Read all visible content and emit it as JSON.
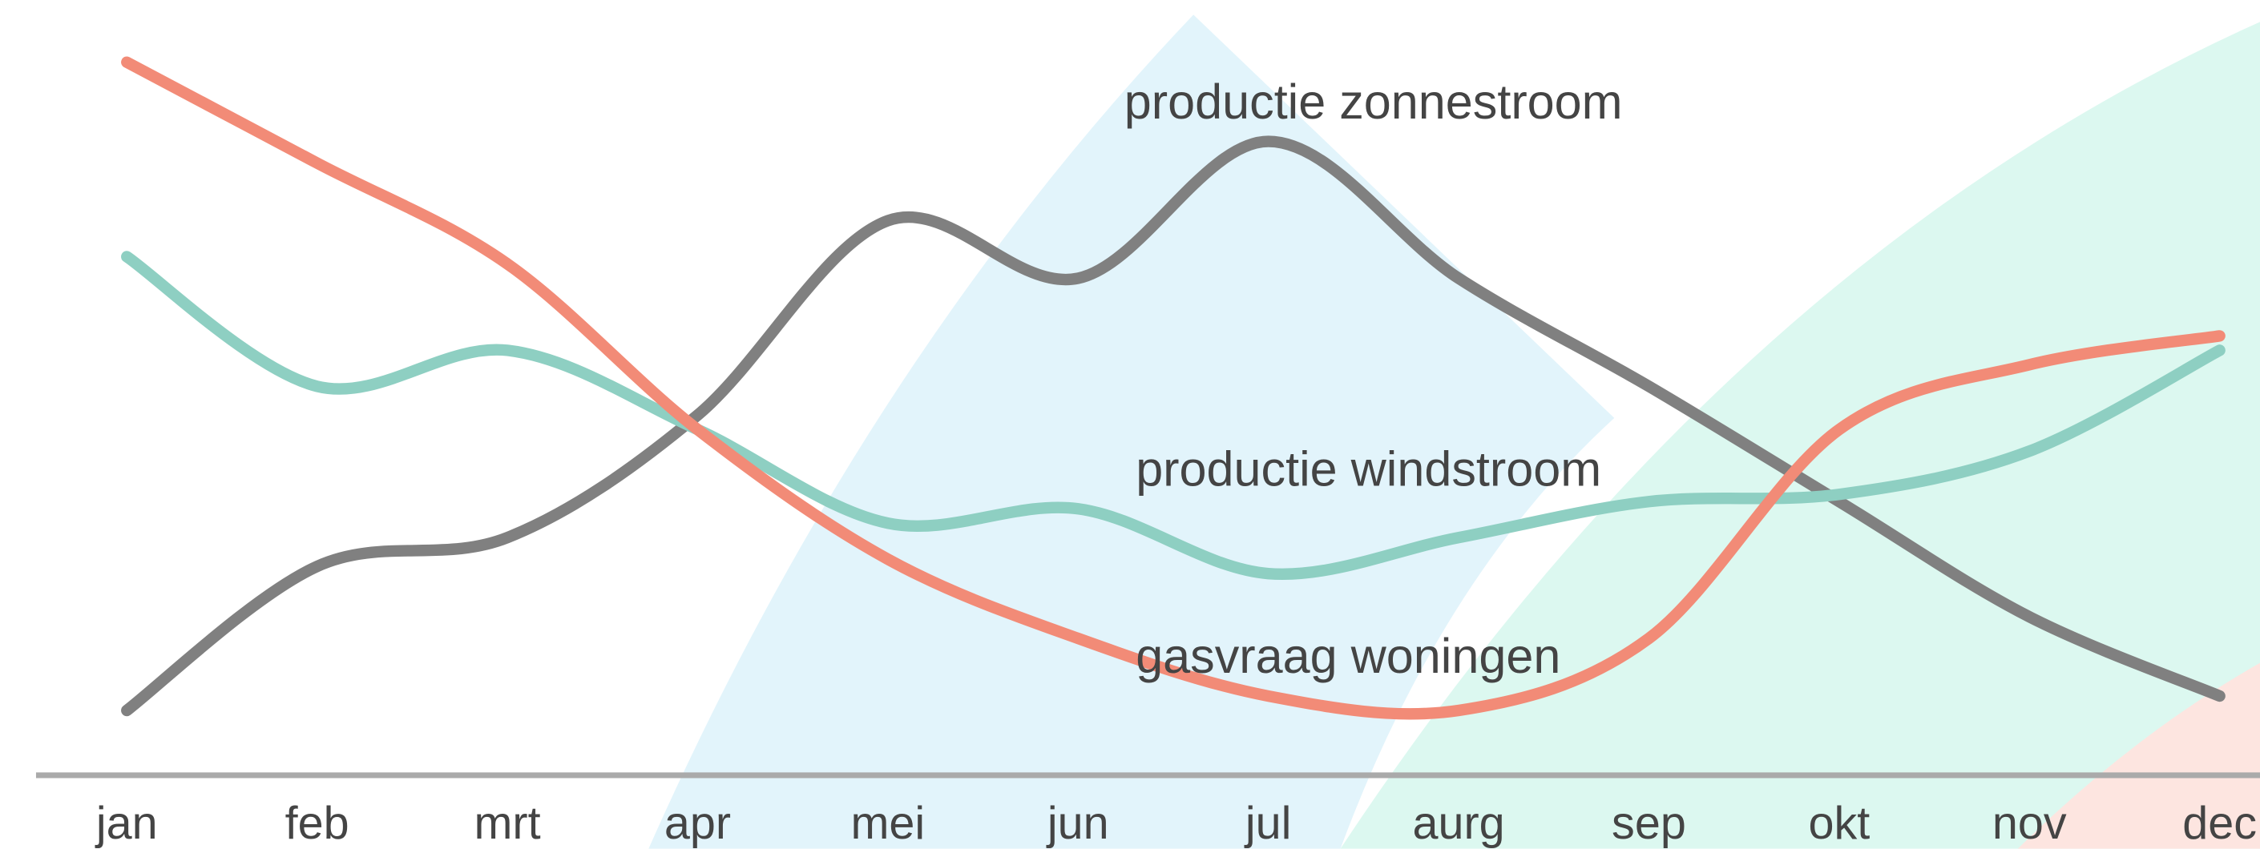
{
  "chart_data": {
    "type": "line",
    "categories": [
      "jan",
      "feb",
      "mrt",
      "apr",
      "mei",
      "jun",
      "jul",
      "aurg",
      "sep",
      "okt",
      "nov",
      "dec"
    ],
    "ylim": [
      0,
      100
    ],
    "series": [
      {
        "name": "productie zonnestroom",
        "color": "#808080",
        "values": [
          9,
          29,
          33,
          50,
          77,
          69,
          88,
          69,
          54,
          38,
          22,
          11
        ]
      },
      {
        "name": "productie windstroom",
        "color": "#8ecfc2",
        "values": [
          72,
          54,
          59,
          48,
          35,
          37,
          28,
          33,
          38,
          39,
          45,
          59
        ]
      },
      {
        "name": "gasvraag woningen",
        "color": "#f28b77",
        "values": [
          99,
          85,
          71,
          48,
          30,
          19,
          11,
          9,
          19,
          48,
          57,
          61
        ]
      }
    ]
  }
}
